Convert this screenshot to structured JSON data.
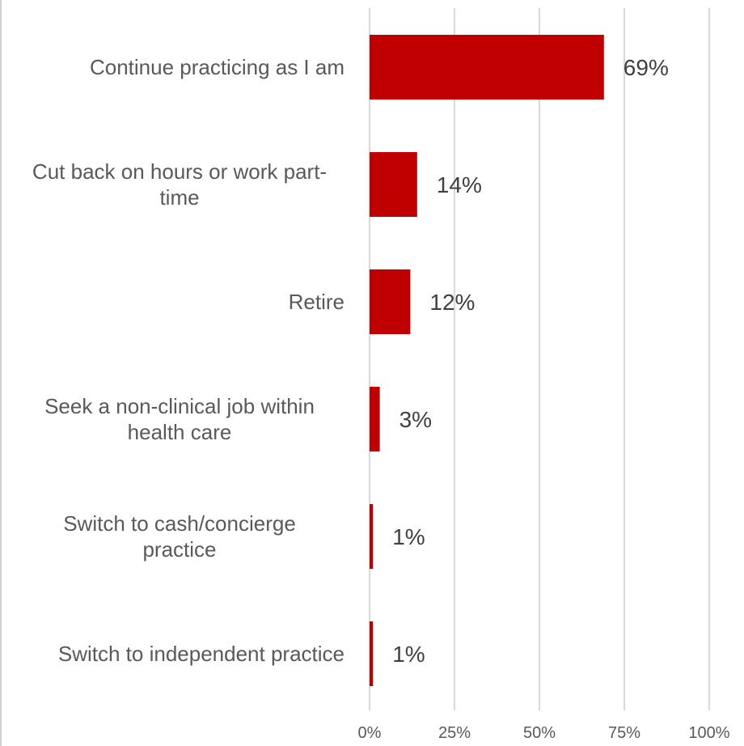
{
  "chart_data": {
    "type": "bar",
    "orientation": "horizontal",
    "categories": [
      [
        "Continue practicing as I am"
      ],
      [
        "Cut back on hours or work part-",
        "time"
      ],
      [
        "Retire"
      ],
      [
        "Seek a non-clinical job within",
        "health care"
      ],
      [
        "Switch to cash/concierge",
        "practice"
      ],
      [
        "Switch to independent practice"
      ]
    ],
    "values": [
      69,
      14,
      12,
      3,
      1,
      1
    ],
    "value_labels": [
      "69%",
      "14%",
      "12%",
      "3%",
      "1%",
      "1%"
    ],
    "xlim": [
      0,
      100
    ],
    "xticks": [
      0,
      25,
      50,
      75,
      100
    ],
    "xtick_labels": [
      "0%",
      "25%",
      "50%",
      "75%",
      "100%"
    ],
    "bar_color": "#c00000",
    "grid": true,
    "title": "",
    "xlabel": "",
    "ylabel": ""
  }
}
